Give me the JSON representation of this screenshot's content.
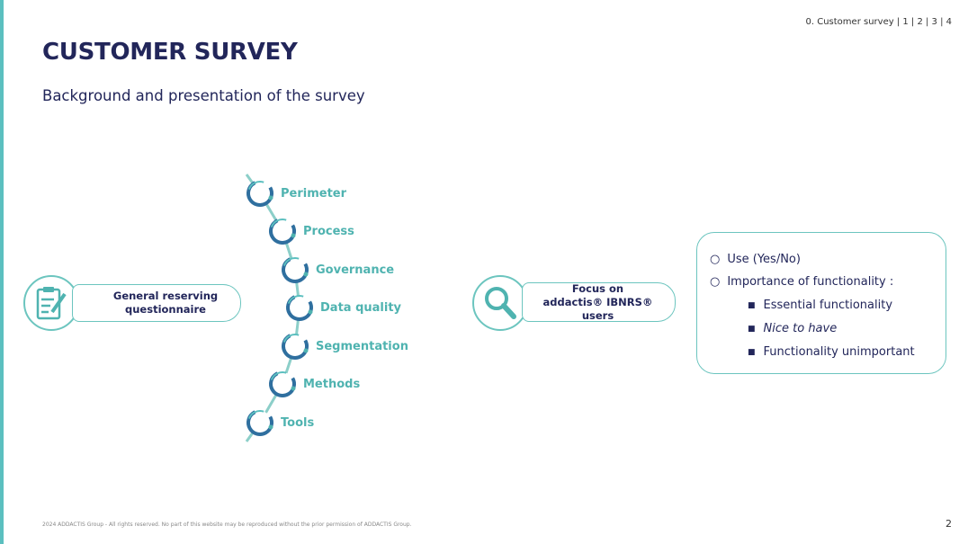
{
  "nav": "0. Customer survey | 1 | 2 | 3 | 4",
  "title": "CUSTOMER SURVEY",
  "subtitle": "Background and presentation of the survey",
  "left_box": "General reserving questionnaire",
  "steps": [
    "Perimeter",
    "Process",
    "Governance",
    "Data quality",
    "Segmentation",
    "Methods",
    "Tools"
  ],
  "middle_box": "Focus on addactis® IBNRS® users",
  "right_box": {
    "items": [
      "Use (Yes/No)",
      "Importance of functionality :"
    ],
    "sub_items": [
      "Essential functionality",
      "Nice to have",
      "Functionality unimportant"
    ]
  },
  "footer": "2024 ADDACTIS Group - All rights reserved. No part of this website may be reproduced without the prior permission of ADDACTIS Group.",
  "page_number": "2",
  "colors": {
    "accent": "#5bbfbf",
    "navy": "#22265a",
    "step_text": "#4fb3b0"
  }
}
